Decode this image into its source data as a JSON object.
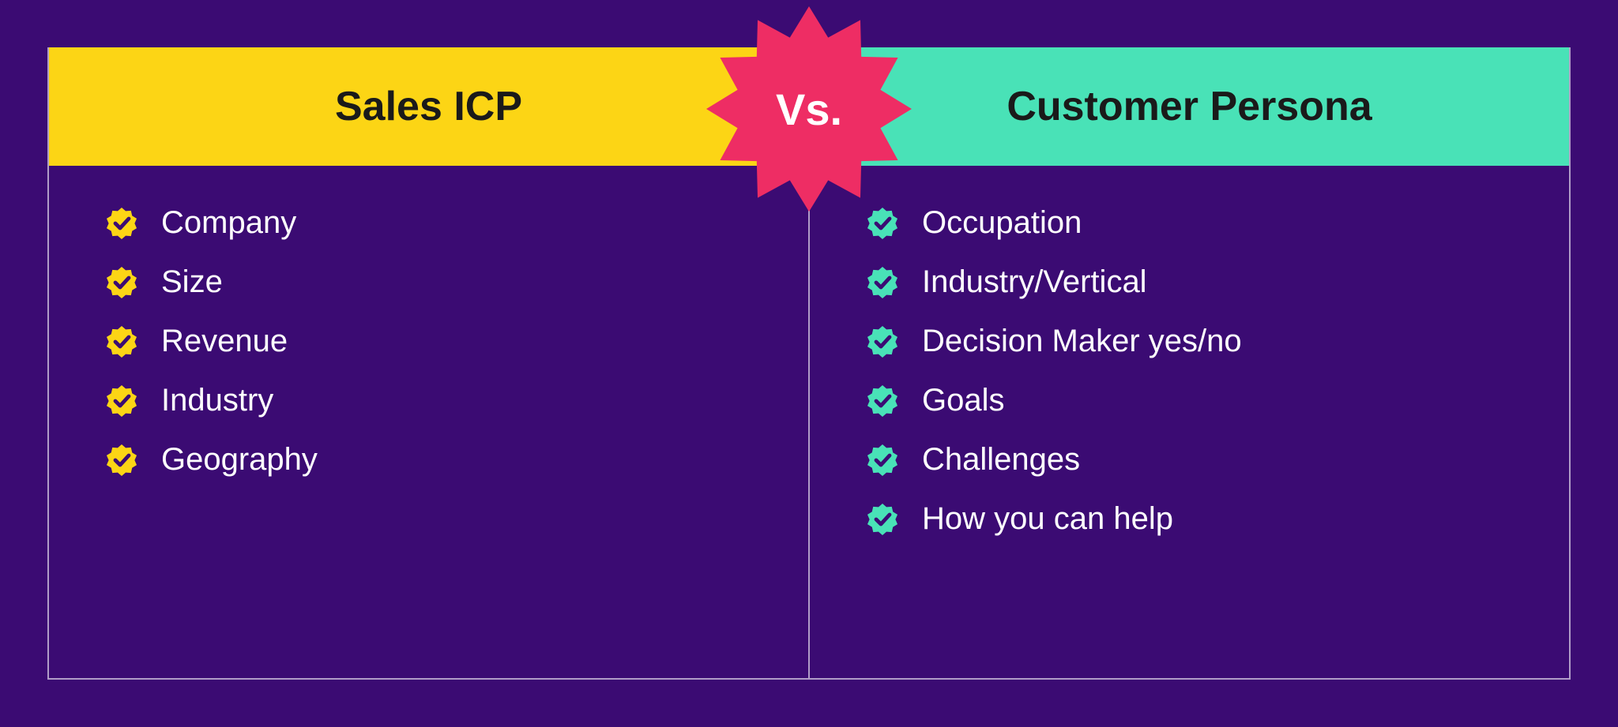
{
  "type": "comparison-table",
  "background_color": "#3b0b73",
  "border_color": "rgba(255,255,255,0.6)",
  "text_color": "#ffffff",
  "item_fontsize": 40,
  "header_fontsize": 52,
  "vs": {
    "label": "Vs.",
    "burst_color": "#ee2d64",
    "text_color": "#ffffff",
    "fontsize": 56,
    "points": 12
  },
  "left": {
    "title": "Sales ICP",
    "header_bg": "#fcd515",
    "header_text_color": "#1a1a1a",
    "badge_color": "#fcd515",
    "check_color": "#3b0b73",
    "items": [
      "Company",
      "Size",
      "Revenue",
      "Industry",
      "Geography"
    ]
  },
  "right": {
    "title": "Customer Persona",
    "header_bg": "#49e2b7",
    "header_text_color": "#1a1a1a",
    "badge_color": "#49e2b7",
    "check_color": "#3b0b73",
    "items": [
      "Occupation",
      "Industry/Vertical",
      "Decision Maker yes/no",
      "Goals",
      "Challenges",
      "How you can help"
    ]
  }
}
